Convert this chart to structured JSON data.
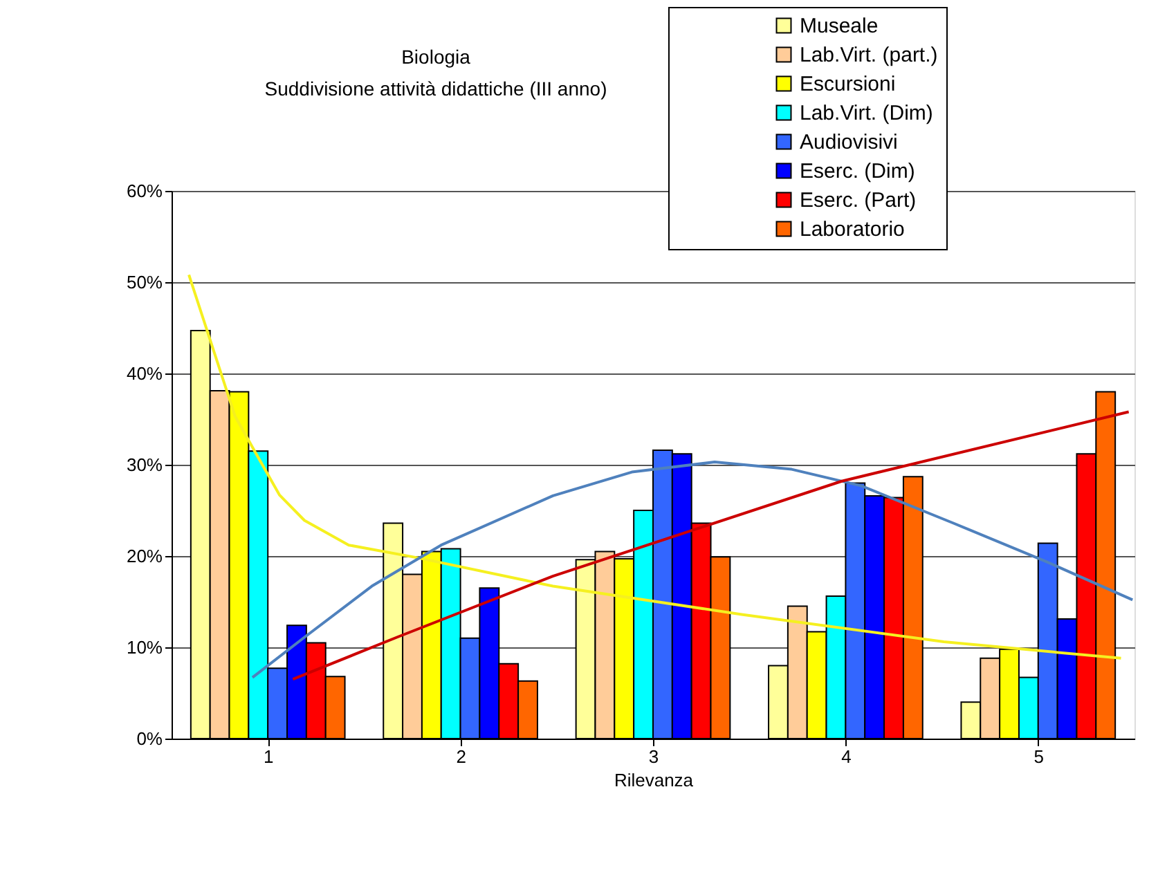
{
  "chart_data": {
    "type": "bar",
    "title": "Biologia",
    "subtitle": "Suddivisione attività didattiche (III anno)",
    "xlabel": "Rilevanza",
    "x": [
      1,
      2,
      3,
      4,
      5
    ],
    "xlim": [
      0.5,
      5.5
    ],
    "xticks": [
      1,
      2,
      3,
      4,
      5
    ],
    "ylim": [
      0,
      60
    ],
    "yticks": [
      {
        "value": 0,
        "label": "0%"
      },
      {
        "value": 10,
        "label": "10%"
      },
      {
        "value": 20,
        "label": "20%"
      },
      {
        "value": 30,
        "label": "30%"
      },
      {
        "value": 40,
        "label": "40%"
      },
      {
        "value": 50,
        "label": "50%"
      },
      {
        "value": 60,
        "label": "60%"
      }
    ],
    "grid": "y",
    "legend": "top right",
    "series": [
      {
        "name": "Museale",
        "color": "#ffff99",
        "values": [
          44.7,
          23.6,
          19.6,
          8.0,
          4.0
        ]
      },
      {
        "name": "Lab.Virt. (part.)",
        "color": "#ffcc99",
        "values": [
          38.1,
          18.0,
          20.5,
          14.5,
          8.8
        ]
      },
      {
        "name": "Escursioni",
        "color": "#ffff00",
        "values": [
          38.0,
          20.5,
          19.7,
          11.7,
          9.8
        ]
      },
      {
        "name": "Lab.Virt. (Dim)",
        "color": "#00ffff",
        "values": [
          31.5,
          20.8,
          25.0,
          15.6,
          6.7
        ]
      },
      {
        "name": "Audiovisivi",
        "color": "#3366ff",
        "values": [
          7.7,
          11.0,
          31.6,
          28.0,
          21.4
        ]
      },
      {
        "name": "Eserc. (Dim)",
        "color": "#0000ff",
        "values": [
          12.4,
          16.5,
          31.2,
          26.6,
          13.1
        ]
      },
      {
        "name": "Eserc. (Part)",
        "color": "#ff0000",
        "values": [
          10.5,
          8.2,
          23.6,
          26.4,
          31.2
        ]
      },
      {
        "name": "Laboratorio",
        "color": "#ff6600",
        "values": [
          6.8,
          6.3,
          19.9,
          28.7,
          38.0
        ]
      },
      {
        "type": "line",
        "color": "#f5f020",
        "x": [
          0.59,
          0.83,
          0.95,
          1.06,
          1.19,
          1.42,
          1.78,
          2.48,
          3.46,
          4.51,
          5.43
        ],
        "values": [
          50.8,
          35.3,
          30.8,
          26.7,
          23.9,
          21.2,
          19.8,
          16.7,
          13.6,
          10.6,
          8.8
        ]
      },
      {
        "type": "line",
        "color": "#4f81bd",
        "x": [
          0.92,
          1.19,
          1.54,
          1.9,
          2.48,
          2.89,
          3.32,
          3.72,
          4.08,
          4.56,
          5.04,
          5.49
        ],
        "values": [
          6.7,
          11.1,
          16.7,
          21.2,
          26.6,
          29.2,
          30.3,
          29.5,
          27.7,
          23.6,
          19.4,
          15.2
        ]
      },
      {
        "type": "line",
        "color": "#cc0000",
        "x": [
          1.13,
          1.67,
          2.48,
          3.98,
          5.47
        ],
        "values": [
          6.5,
          11.1,
          17.8,
          28.2,
          35.8
        ]
      }
    ]
  }
}
